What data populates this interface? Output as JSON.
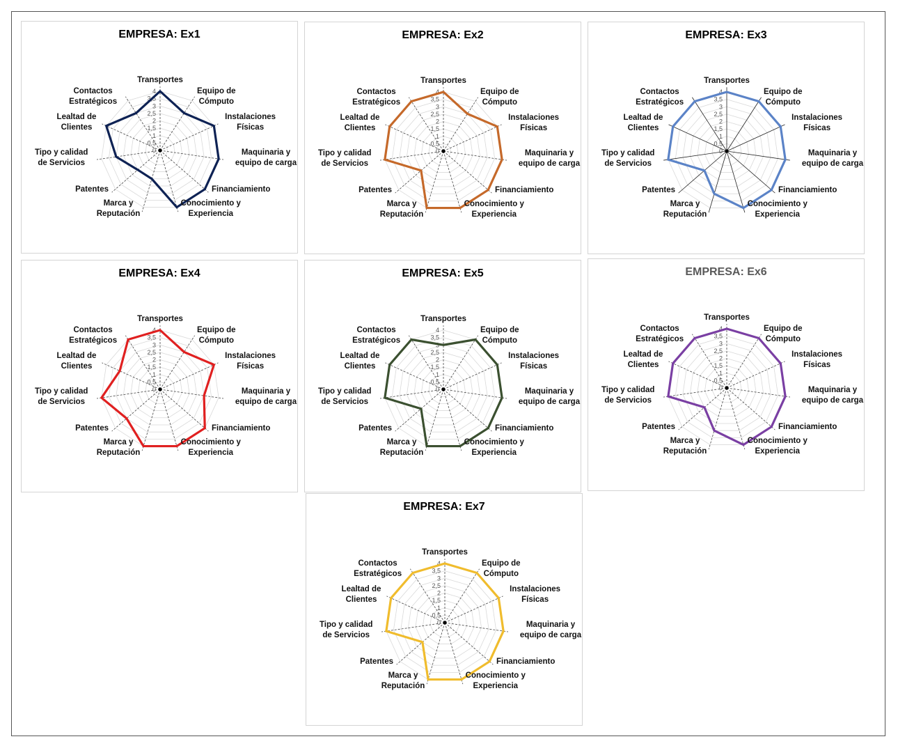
{
  "chart_data": [
    {
      "type": "radar",
      "title": "EMPRESA: Ex1",
      "title_color": "#000000",
      "series_color": "#0e2254",
      "axes": [
        "Transportes",
        "Equipo de Cómputo",
        "Instalaciones Físicas",
        "Maquinaria y equipo de carga",
        "Financiamiento",
        "Conocimiento y Experiencia",
        "Marca y Reputación",
        "Patentes",
        "Tipo y calidad de Servicios",
        "Lealtad de Clientes",
        "Contactos Estratégicos"
      ],
      "values": [
        4,
        3,
        4,
        4,
        4,
        4,
        2,
        2,
        3,
        4,
        3
      ],
      "ticks": [
        "4",
        "3,5",
        "3",
        "2,5",
        "2",
        "1,5",
        "1",
        "0,5",
        "0"
      ],
      "range": [
        0,
        4
      ],
      "grid_style": "dashed"
    },
    {
      "type": "radar",
      "title": "EMPRESA: Ex2",
      "title_color": "#000000",
      "series_color": "#c5692a",
      "axes": [
        "Transportes",
        "Equipo de Cómputo",
        "Instalaciones Físicas",
        "Maquinaria y equipo de carga",
        "Financiamiento",
        "Conocimiento y Experiencia",
        "Marca y Reputación",
        "Patentes",
        "Tipo y calidad de Servicios",
        "Lealtad de Clientes",
        "Contactos Estratégicos"
      ],
      "values": [
        4,
        3,
        4,
        4,
        4,
        4,
        4,
        2,
        4,
        4,
        4
      ],
      "ticks": [
        "4",
        "3,5",
        "3",
        "2,5",
        "2",
        "1,5",
        "1",
        "0,5",
        "0"
      ],
      "range": [
        0,
        4
      ],
      "grid_style": "dashed"
    },
    {
      "type": "radar",
      "title": "EMPRESA: Ex3",
      "title_color": "#000000",
      "series_color": "#5b83c7",
      "axes": [
        "Transportes",
        "Equipo de Cómputo",
        "Instalaciones Físicas",
        "Maquinaria y equipo de carga",
        "Financiamiento",
        "Conocimiento y Experiencia",
        "Marca y Reputación",
        "Patentes",
        "Tipo y calidad de Servicios",
        "Lealtad de Clientes",
        "Contactos Estratégicos"
      ],
      "values": [
        4,
        4,
        4,
        4,
        4,
        4,
        3,
        2,
        4,
        4,
        4
      ],
      "ticks": [
        "4",
        "3,5",
        "3",
        "2,5",
        "2",
        "1,5",
        "1",
        "0,5",
        "0"
      ],
      "range": [
        0,
        4
      ],
      "grid_style": "solid"
    },
    {
      "type": "radar",
      "title": "EMPRESA: Ex4",
      "title_color": "#000000",
      "series_color": "#e02020",
      "axes": [
        "Transportes",
        "Equipo de Cómputo",
        "Instalaciones Físicas",
        "Maquinaria y equipo de carga",
        "Financiamiento",
        "Conocimiento y Experiencia",
        "Marca y Reputación",
        "Patentes",
        "Tipo y calidad de Servicios",
        "Lealtad de Clientes",
        "Contactos Estratégicos"
      ],
      "values": [
        4,
        3,
        4,
        3,
        4,
        4,
        4,
        3,
        4,
        3,
        4
      ],
      "ticks": [
        "4",
        "3,5",
        "3",
        "2,5",
        "2",
        "1,5",
        "1",
        "0,5",
        "0"
      ],
      "range": [
        0,
        4
      ],
      "grid_style": "dashed"
    },
    {
      "type": "radar",
      "title": "EMPRESA: Ex5",
      "title_color": "#000000",
      "series_color": "#3b5030",
      "axes": [
        "Transportes",
        "Equipo de Cómputo",
        "Instalaciones Físicas",
        "Maquinaria y equipo de carga",
        "Financiamiento",
        "Conocimiento y Experiencia",
        "Marca y Reputación",
        "Patentes",
        "Tipo y calidad de Servicios",
        "Lealtad de Clientes",
        "Contactos Estratégicos"
      ],
      "values": [
        3,
        4,
        4,
        4,
        4,
        4,
        4,
        2,
        4,
        4,
        4
      ],
      "ticks": [
        "4",
        "3,5",
        "3",
        "2,5",
        "2",
        "1,5",
        "1",
        "0,5",
        "0"
      ],
      "range": [
        0,
        4
      ],
      "grid_style": "dashed"
    },
    {
      "type": "radar",
      "title": "EMPRESA: Ex6",
      "title_color": "#595959",
      "series_color": "#7a3fa3",
      "axes": [
        "Transportes",
        "Equipo de Cómputo",
        "Instalaciones Físicas",
        "Maquinaria y equipo de carga",
        "Financiamiento",
        "Conocimiento y Experiencia",
        "Marca y Reputación",
        "Patentes",
        "Tipo y calidad de Servicios",
        "Lealtad de Clientes",
        "Contactos Estratégicos"
      ],
      "values": [
        4,
        4,
        4,
        4,
        4,
        4,
        3,
        2,
        4,
        4,
        4
      ],
      "ticks": [
        "4",
        "3,5",
        "3",
        "2,5",
        "2",
        "1,5",
        "1",
        "0,5",
        "0"
      ],
      "range": [
        0,
        4
      ],
      "grid_style": "dashed"
    },
    {
      "type": "radar",
      "title": "EMPRESA: Ex7",
      "title_color": "#000000",
      "series_color": "#f0bc2d",
      "axes": [
        "Transportes",
        "Equipo de Cómputo",
        "Instalaciones Físicas",
        "Maquinaria y equipo de carga",
        "Financiamiento",
        "Conocimiento y Experiencia",
        "Marca y Reputación",
        "Patentes",
        "Tipo y calidad de Servicios",
        "Lealtad de Clientes",
        "Contactos Estratégicos"
      ],
      "values": [
        4,
        4,
        4,
        4,
        4,
        4,
        4,
        2,
        4,
        4,
        4
      ],
      "ticks": [
        "4",
        "3,5",
        "3",
        "2,5",
        "2",
        "1,5",
        "1",
        "0,5",
        "0"
      ],
      "range": [
        0,
        4
      ],
      "grid_style": "dashed"
    }
  ]
}
